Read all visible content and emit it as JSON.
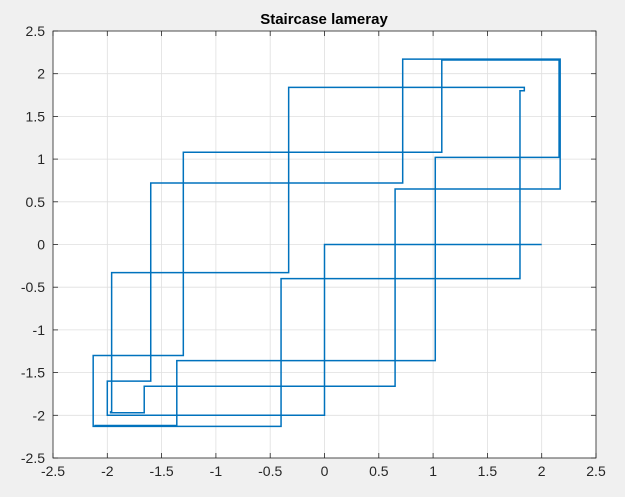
{
  "window": {
    "background": "#f0f0f0"
  },
  "chart_data": {
    "type": "line",
    "title": "Staircase lameray",
    "xlabel": "",
    "ylabel": "",
    "xlim": [
      -2.5,
      2.5
    ],
    "ylim": [
      -2.5,
      2.5
    ],
    "xticks": [
      -2.5,
      -2,
      -1.5,
      -1,
      -0.5,
      0,
      0.5,
      1,
      1.5,
      2,
      2.5
    ],
    "yticks": [
      -2.5,
      -2,
      -1.5,
      -1,
      -0.5,
      0,
      0.5,
      1,
      1.5,
      2,
      2.5
    ],
    "xtick_labels": [
      "-2.5",
      "-2",
      "-1.5",
      "-1",
      "-0.5",
      "0",
      "0.5",
      "1",
      "1.5",
      "2",
      "2.5"
    ],
    "ytick_labels": [
      "-2.5",
      "-2",
      "-1.5",
      "-1",
      "-0.5",
      "0",
      "0.5",
      "1",
      "1.5",
      "2",
      "2.5"
    ],
    "grid": true,
    "legend": false,
    "series": [
      {
        "color": "#0072bd",
        "points": [
          [
            2.0,
            0.0
          ],
          [
            0.0,
            0.0
          ],
          [
            0.0,
            -2.0
          ],
          [
            -1.99,
            -2.0
          ],
          [
            -1.99,
            -1.6
          ],
          [
            -1.6,
            -1.6
          ],
          [
            -1.6,
            0.72
          ],
          [
            0.72,
            0.72
          ],
          [
            0.72,
            2.17
          ],
          [
            2.17,
            2.17
          ],
          [
            2.17,
            0.65
          ],
          [
            0.65,
            0.65
          ],
          [
            0.65,
            -1.66
          ],
          [
            -1.66,
            -1.66
          ],
          [
            -1.66,
            -1.97
          ],
          [
            -1.97,
            -1.97
          ],
          [
            -1.97,
            -1.96
          ],
          [
            -1.6,
            -1.96
          ],
          [
            -1.6,
            -1.96
          ]
        ],
        "stairs": [
          [
            2.0,
            0.0
          ],
          [
            0.0,
            -2.0
          ],
          [
            -2.0,
            -1.6
          ],
          [
            -1.6,
            0.72
          ],
          [
            0.72,
            2.17
          ],
          [
            2.17,
            0.65
          ],
          [
            0.65,
            -1.66
          ],
          [
            -1.66,
            -1.97
          ],
          [
            -1.97,
            -1.96
          ],
          [
            -1.96,
            -0.33
          ],
          [
            -0.33,
            1.84
          ],
          [
            1.84,
            1.8
          ],
          [
            1.8,
            -0.4
          ],
          [
            -0.4,
            -2.13
          ],
          [
            -2.13,
            -1.3
          ],
          [
            -1.3,
            1.08
          ],
          [
            1.08,
            2.16
          ],
          [
            2.16,
            1.02
          ],
          [
            1.02,
            -1.36
          ],
          [
            -1.36,
            -2.12
          ],
          [
            -2.12,
            -2.12
          ]
        ]
      }
    ]
  }
}
